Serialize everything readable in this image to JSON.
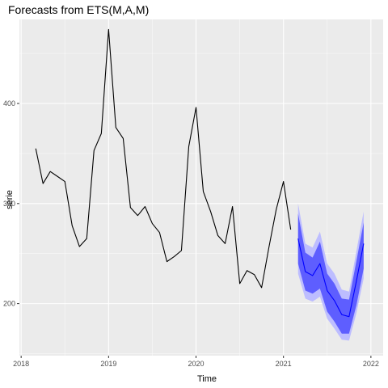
{
  "chart_data": {
    "type": "line",
    "title": "Forecasts from ETS(M,A,M)",
    "xlabel": "Time",
    "ylabel": "serie",
    "xlim": [
      2017.98,
      2022.14
    ],
    "ylim": [
      148,
      484
    ],
    "x_ticks": [
      2018,
      2019,
      2020,
      2021,
      2022
    ],
    "x_tick_labels": [
      "2018",
      "2019",
      "2020",
      "2021",
      "2022"
    ],
    "y_ticks": [
      200,
      300,
      400
    ],
    "y_tick_labels": [
      "200",
      "300",
      "400"
    ],
    "grid": true,
    "legend": "none",
    "colors": {
      "panel": "#ebebeb",
      "grid_major": "#ffffff",
      "history_line": "#000000",
      "forecast_line": "#0000ff",
      "band_95": "#bdbdff",
      "band_80": "#5e5eff"
    },
    "series": [
      {
        "role": "history",
        "x": [
          2018.167,
          2018.25,
          2018.333,
          2018.417,
          2018.5,
          2018.583,
          2018.667,
          2018.75,
          2018.833,
          2018.917,
          2019.0,
          2019.083,
          2019.167,
          2019.25,
          2019.333,
          2019.417,
          2019.5,
          2019.583,
          2019.667,
          2019.75,
          2019.833,
          2019.917,
          2020.0,
          2020.083,
          2020.167,
          2020.25,
          2020.333,
          2020.417,
          2020.5,
          2020.583,
          2020.667,
          2020.75,
          2020.833,
          2020.917,
          2021.0,
          2021.083
        ],
        "y": [
          355,
          320,
          332,
          327,
          322,
          278,
          257,
          265,
          353,
          370,
          474,
          376,
          365,
          296,
          288,
          297,
          280,
          271,
          242,
          247,
          253,
          357,
          396,
          312,
          292,
          268,
          260,
          297,
          220,
          233,
          229,
          216,
          256,
          294,
          322,
          274
        ]
      },
      {
        "role": "forecast",
        "x": [
          2021.167,
          2021.25,
          2021.333,
          2021.417,
          2021.5,
          2021.583,
          2021.667,
          2021.75,
          2021.833,
          2021.917
        ],
        "y": [
          265,
          232,
          228,
          240,
          213,
          203,
          189,
          187,
          222,
          260
        ],
        "lo80": [
          240,
          213,
          210,
          215,
          192,
          182,
          170,
          170,
          198,
          235
        ],
        "hi80": [
          290,
          251,
          246,
          262,
          230,
          220,
          205,
          204,
          242,
          281
        ],
        "lo95": [
          230,
          205,
          202,
          207,
          185,
          175,
          164,
          163,
          190,
          225
        ],
        "hi95": [
          300,
          260,
          256,
          272,
          240,
          230,
          214,
          212,
          252,
          292
        ]
      }
    ]
  }
}
